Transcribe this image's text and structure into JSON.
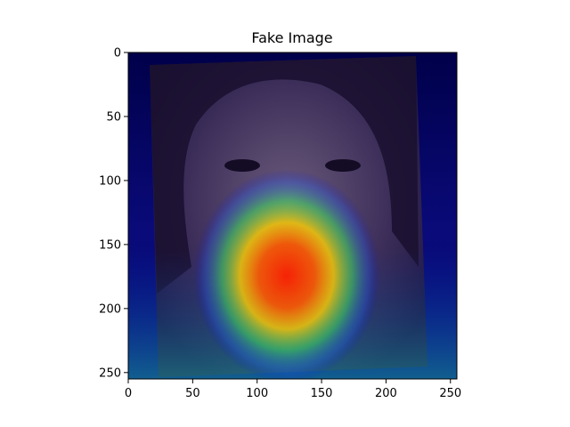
{
  "chart_data": {
    "type": "heatmap",
    "title": "Fake Image",
    "xlabel": "",
    "ylabel": "",
    "xlim": [
      0,
      255
    ],
    "ylim": [
      255,
      0
    ],
    "x_ticks": [
      0,
      50,
      100,
      150,
      200,
      250
    ],
    "y_ticks": [
      0,
      50,
      100,
      150,
      200,
      250
    ],
    "grid": false,
    "image_description": "Grad-CAM heatmap overlay on a face photo; activation peaks over the mouth/lips region",
    "hotspot": {
      "center": [
        115,
        190
      ],
      "peak_level": 1.0
    },
    "colormap": [
      "#00007f",
      "#0000ff",
      "#00ffff",
      "#ffff00",
      "#ff0000"
    ]
  }
}
